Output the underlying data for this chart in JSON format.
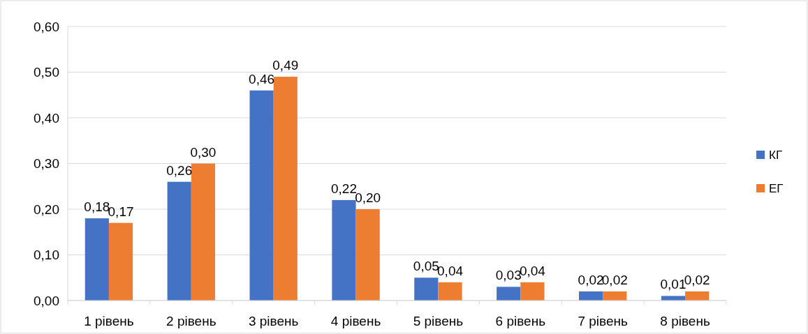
{
  "chart_data": {
    "type": "bar",
    "categories": [
      "1 рівень",
      "2 рівень",
      "3 рівень",
      "4 рівень",
      "5 рівень",
      "6 рівень",
      "7 рівень",
      "8 рівень"
    ],
    "series": [
      {
        "name": "КГ",
        "color": "#4472c4",
        "values": [
          0.18,
          0.26,
          0.46,
          0.22,
          0.05,
          0.03,
          0.02,
          0.01
        ],
        "value_labels": [
          "0,18",
          "0,26",
          "0,46",
          "0,22",
          "0,05",
          "0,03",
          "0,02",
          "0,01"
        ]
      },
      {
        "name": "ЕГ",
        "color": "#ed7d31",
        "values": [
          0.17,
          0.3,
          0.49,
          0.2,
          0.04,
          0.04,
          0.02,
          0.02
        ],
        "value_labels": [
          "0,17",
          "0,30",
          "0,49",
          "0,20",
          "0,04",
          "0,04",
          "0,02",
          "0,02"
        ]
      }
    ],
    "ylim": [
      0,
      0.6
    ],
    "yticks": [
      {
        "value": 0,
        "label": "0,00"
      },
      {
        "value": 0.1,
        "label": "0,10"
      },
      {
        "value": 0.2,
        "label": "0,20"
      },
      {
        "value": 0.3,
        "label": "0,30"
      },
      {
        "value": 0.4,
        "label": "0,40"
      },
      {
        "value": 0.5,
        "label": "0,50"
      },
      {
        "value": 0.6,
        "label": "0,60"
      }
    ],
    "grid": "y",
    "legend": "right"
  }
}
